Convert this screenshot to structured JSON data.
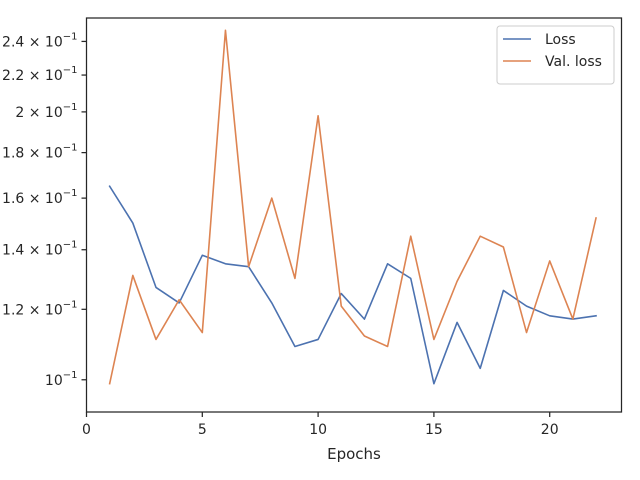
{
  "chart_data": {
    "type": "line",
    "title": "",
    "xlabel": "Epochs",
    "ylabel": "",
    "xlim": [
      0,
      23.1
    ],
    "ylim": [
      0.092,
      0.255
    ],
    "y_scale": "log",
    "grid": false,
    "legend_position": "top-right",
    "x_ticks": [
      0,
      5,
      10,
      15,
      20
    ],
    "x_tick_labels": [
      "0",
      "5",
      "10",
      "15",
      "20"
    ],
    "y_ticks": [
      {
        "value": 0.1,
        "mantissa": "",
        "exponent": "−1"
      },
      {
        "value": 0.12,
        "mantissa": "1.2",
        "exponent": "−1"
      },
      {
        "value": 0.14,
        "mantissa": "1.4",
        "exponent": "−1"
      },
      {
        "value": 0.16,
        "mantissa": "1.6",
        "exponent": "−1"
      },
      {
        "value": 0.18,
        "mantissa": "1.8",
        "exponent": "−1"
      },
      {
        "value": 0.2,
        "mantissa": "2",
        "exponent": "−1"
      },
      {
        "value": 0.22,
        "mantissa": "2.2",
        "exponent": "−1"
      },
      {
        "value": 0.24,
        "mantissa": "2.4",
        "exponent": "−1"
      }
    ],
    "x": [
      1,
      2,
      3,
      4,
      5,
      6,
      7,
      8,
      9,
      10,
      11,
      12,
      13,
      14,
      15,
      16,
      17,
      18,
      19,
      20,
      21,
      22
    ],
    "series": [
      {
        "name": "Loss",
        "color": "#4c72b0",
        "values": [
          0.165,
          0.15,
          0.127,
          0.122,
          0.138,
          0.135,
          0.134,
          0.122,
          0.109,
          0.111,
          0.125,
          0.117,
          0.135,
          0.13,
          0.099,
          0.116,
          0.103,
          0.126,
          0.121,
          0.118,
          0.117,
          0.118
        ]
      },
      {
        "name": "Val. loss",
        "color": "#dd8452",
        "values": [
          0.099,
          0.131,
          0.111,
          0.123,
          0.113,
          0.247,
          0.134,
          0.16,
          0.13,
          0.198,
          0.121,
          0.112,
          0.109,
          0.145,
          0.111,
          0.129,
          0.145,
          0.141,
          0.113,
          0.136,
          0.117,
          0.152
        ]
      }
    ]
  }
}
